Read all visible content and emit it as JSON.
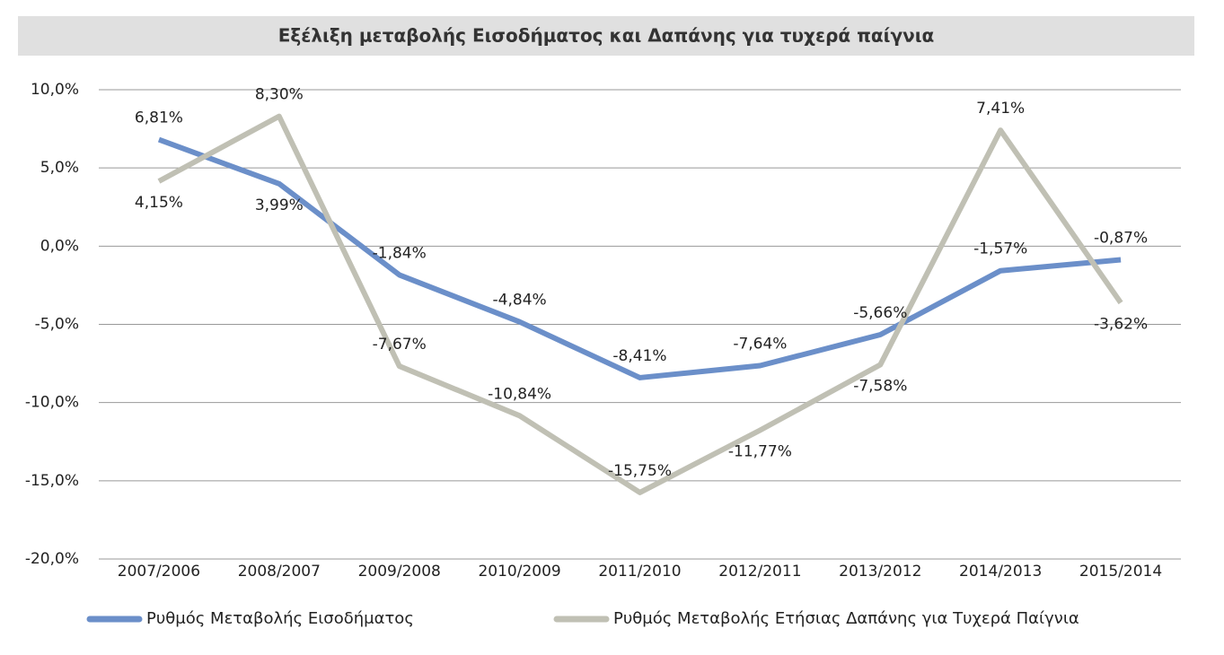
{
  "chart_data": {
    "type": "line",
    "title": "Εξέλιξη μεταβολής Εισοδήματος και Δαπάνης για τυχερά παίγνια",
    "categories": [
      "2007/2006",
      "2008/2007",
      "2009/2008",
      "2010/2009",
      "2011/2010",
      "2012/2011",
      "2013/2012",
      "2014/2013",
      "2015/2014"
    ],
    "series": [
      {
        "name": "Ρυθμός Μεταβολής Εισοδήματος",
        "color": "#6b8fc9",
        "values": [
          6.81,
          3.99,
          -1.84,
          -4.84,
          -8.41,
          -7.64,
          -5.66,
          -1.57,
          -0.87
        ],
        "value_labels": [
          "6,81%",
          "3,99%",
          "-1,84%",
          "-4,84%",
          "-8,41%",
          "-7,64%",
          "-5,66%",
          "-1,57%",
          "-0,87%"
        ]
      },
      {
        "name": "Ρυθμός Μεταβολής Ετήσιας Δαπάνης για Τυχερά Παίγνια",
        "color": "#c0c0b4",
        "values": [
          4.15,
          8.3,
          -7.67,
          -10.84,
          -15.75,
          -11.77,
          -7.58,
          7.41,
          -3.62
        ],
        "value_labels": [
          "4,15%",
          "8,30%",
          "-7,67%",
          "-10,84%",
          "-15,75%",
          "-11,77%",
          "-7,58%",
          "7,41%",
          "-3,62%"
        ]
      }
    ],
    "ylim": [
      -20,
      10
    ],
    "yticks": [
      {
        "value": -20,
        "label": "-20,0%"
      },
      {
        "value": -15,
        "label": "-15,0%"
      },
      {
        "value": -10,
        "label": "-10,0%"
      },
      {
        "value": -5,
        "label": "-5,0%"
      },
      {
        "value": 0,
        "label": "0,0%"
      },
      {
        "value": 5,
        "label": "5,0%"
      },
      {
        "value": 10,
        "label": "10,0%"
      }
    ],
    "grid": true,
    "legend": "bottom"
  }
}
